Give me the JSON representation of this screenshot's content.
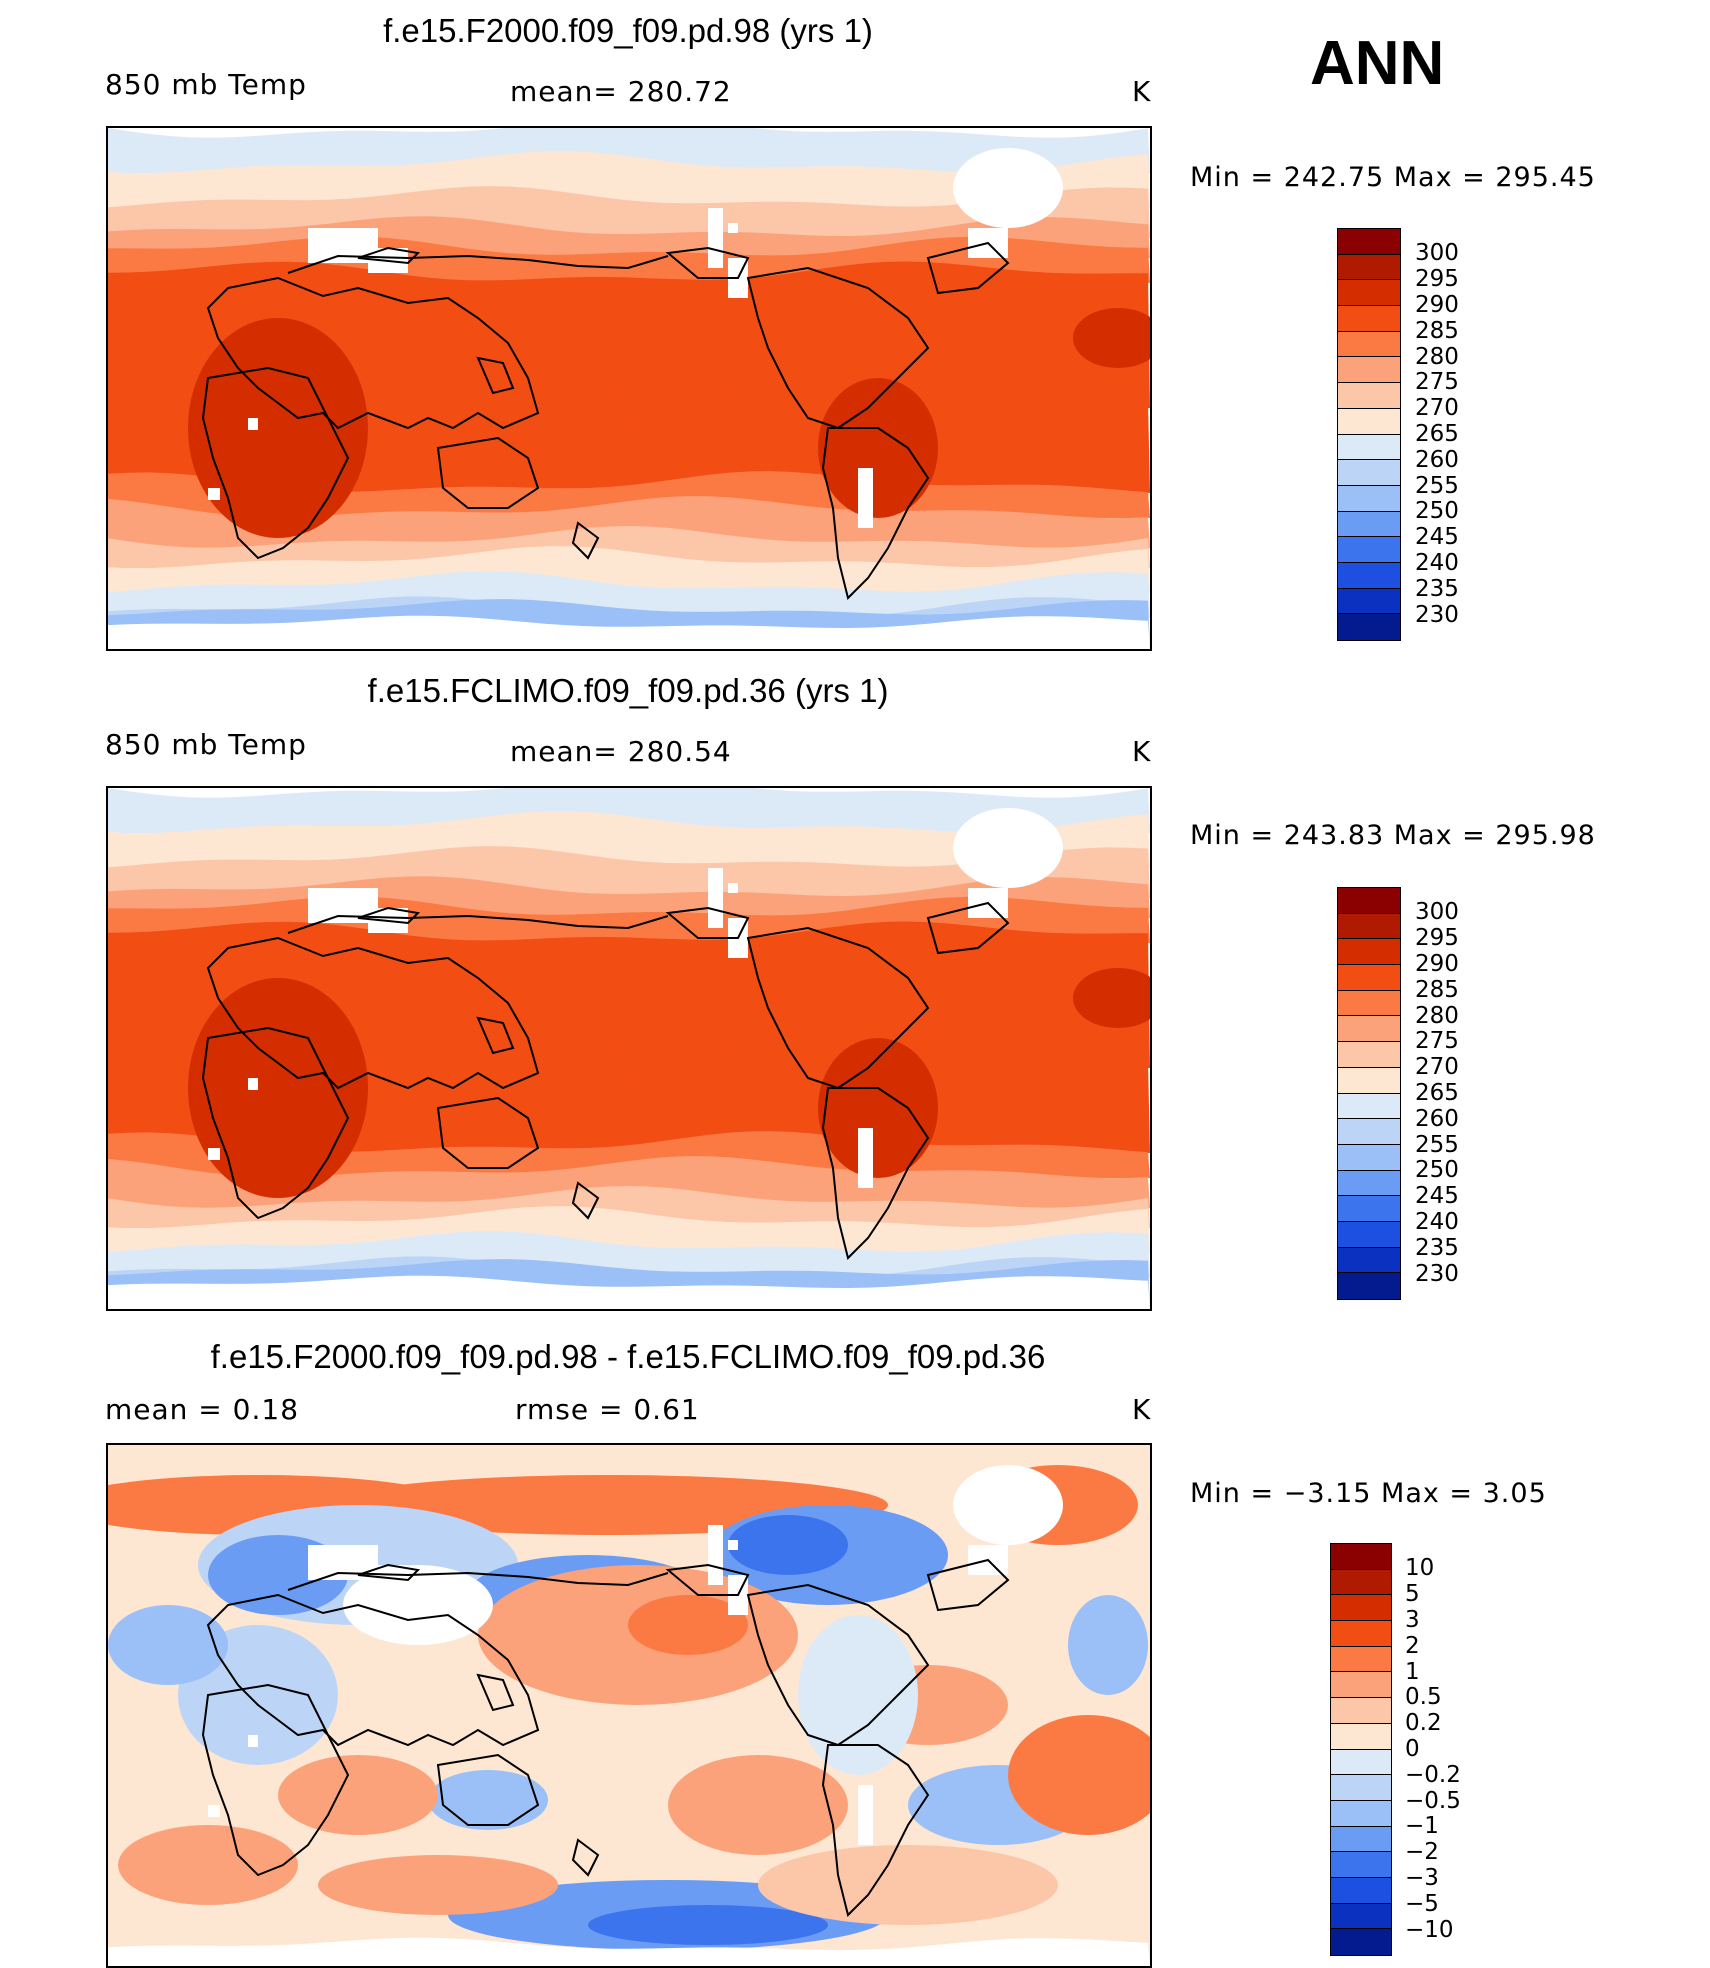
{
  "season": "ANN",
  "panels": [
    {
      "title": "f.e15.F2000.f09_f09.pd.98 (yrs 1)",
      "left_label": "850 mb Temp",
      "center_label": "mean= 280.72",
      "units": "K",
      "minmax": "Min = 242.75 Max = 295.45",
      "variant": "model"
    },
    {
      "title": "f.e15.FCLIMO.f09_f09.pd.36 (yrs 1)",
      "left_label": "850 mb Temp",
      "center_label": "mean= 280.54",
      "units": "K",
      "minmax": "Min = 243.83 Max = 295.98",
      "variant": "obs"
    },
    {
      "title": "f.e15.F2000.f09_f09.pd.98 - f.e15.FCLIMO.f09_f09.pd.36",
      "left_label": "mean = 0.18",
      "center_label": "rmse = 0.61",
      "units": "K",
      "minmax": "Min = −3.15 Max = 3.05",
      "variant": "diff"
    }
  ],
  "colorbars": [
    {
      "labels": [
        "300",
        "295",
        "290",
        "285",
        "280",
        "275",
        "270",
        "265",
        "260",
        "255",
        "250",
        "245",
        "240",
        "235",
        "230"
      ],
      "colors": [
        "#8b0000",
        "#b01a00",
        "#d42d00",
        "#f24d13",
        "#fb7a44",
        "#fca27a",
        "#fcc6a8",
        "#fde6d2",
        "#dceaf8",
        "#bcd5f7",
        "#9ac0f7",
        "#6b9cf3",
        "#3b74ec",
        "#1d4fe0",
        "#0a31c0",
        "#031b8f"
      ]
    },
    {
      "labels": [
        "300",
        "295",
        "290",
        "285",
        "280",
        "275",
        "270",
        "265",
        "260",
        "255",
        "250",
        "245",
        "240",
        "235",
        "230"
      ],
      "colors": [
        "#8b0000",
        "#b01a00",
        "#d42d00",
        "#f24d13",
        "#fb7a44",
        "#fca27a",
        "#fcc6a8",
        "#fde6d2",
        "#dceaf8",
        "#bcd5f7",
        "#9ac0f7",
        "#6b9cf3",
        "#3b74ec",
        "#1d4fe0",
        "#0a31c0",
        "#031b8f"
      ]
    },
    {
      "labels": [
        "10",
        "5",
        "3",
        "2",
        "1",
        "0.5",
        "0.2",
        "0",
        "−0.2",
        "−0.5",
        "−1",
        "−2",
        "−3",
        "−5",
        "−10"
      ],
      "colors": [
        "#8b0000",
        "#b01a00",
        "#d42d00",
        "#f24d13",
        "#fb7a44",
        "#fca27a",
        "#fcc6a8",
        "#fde6d2",
        "#dceaf8",
        "#bcd5f7",
        "#9ac0f7",
        "#6b9cf3",
        "#3b74ec",
        "#1d4fe0",
        "#0a31c0",
        "#031b8f"
      ]
    }
  ]
}
